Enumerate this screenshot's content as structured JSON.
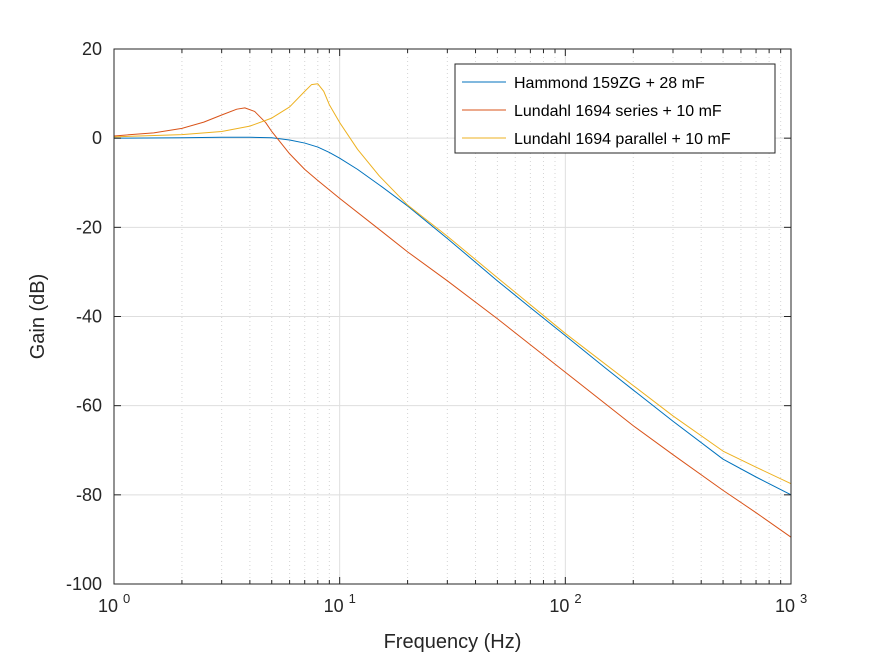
{
  "chart_data": {
    "type": "line",
    "title": "",
    "xlabel": "Frequency (Hz)",
    "ylabel": "Gain (dB)",
    "xscale": "log",
    "xlim": [
      1,
      1000
    ],
    "ylim": [
      -100,
      20
    ],
    "xticks": [
      {
        "base": "10",
        "exp": "0"
      },
      {
        "base": "10",
        "exp": "1"
      },
      {
        "base": "10",
        "exp": "2"
      },
      {
        "base": "10",
        "exp": "3"
      }
    ],
    "yticks": [
      "20",
      "0",
      "-20",
      "-40",
      "-60",
      "-80",
      "-100"
    ],
    "grid": true,
    "minor_grid": true,
    "legend_position": "top-right",
    "series": [
      {
        "name": "Hammond 159ZG + 28 mF",
        "color": "#0072BD",
        "x": [
          1,
          2,
          3,
          4,
          5,
          6,
          7,
          8,
          9,
          10,
          12,
          15,
          20,
          30,
          50,
          70,
          100,
          150,
          200,
          300,
          500,
          700,
          1000
        ],
        "y": [
          0,
          0.1,
          0.2,
          0.2,
          0.1,
          -0.4,
          -1.1,
          -2.0,
          -3.2,
          -4.5,
          -7.0,
          -10.5,
          -15.2,
          -22.5,
          -32.0,
          -38.0,
          -44.3,
          -51.5,
          -56.5,
          -63.5,
          -72.0,
          -76.0,
          -80.0
        ]
      },
      {
        "name": "Lundahl 1694 series + 10 mF",
        "color": "#D95319",
        "x": [
          1,
          1.5,
          2,
          2.5,
          3,
          3.5,
          3.8,
          4.2,
          4.7,
          5,
          6,
          7,
          8,
          10,
          15,
          20,
          30,
          50,
          100,
          200,
          300,
          500,
          700,
          1000
        ],
        "y": [
          0.5,
          1.2,
          2.2,
          3.6,
          5.2,
          6.5,
          6.8,
          6.0,
          3.5,
          1.5,
          -3.5,
          -7.0,
          -9.5,
          -13.5,
          -20.5,
          -25.5,
          -32.0,
          -40.5,
          -52.5,
          -64.5,
          -71.0,
          -79.0,
          -84.0,
          -89.5
        ]
      },
      {
        "name": "Lundahl 1694 parallel + 10 mF",
        "color": "#EDB120",
        "x": [
          1,
          2,
          3,
          4,
          5,
          6,
          7,
          7.5,
          8,
          8.5,
          9,
          10,
          12,
          15,
          20,
          30,
          50,
          100,
          200,
          300,
          500,
          700,
          1000
        ],
        "y": [
          0.3,
          0.8,
          1.5,
          2.7,
          4.5,
          7.0,
          10.5,
          12.0,
          12.2,
          10.5,
          7.5,
          3.5,
          -2.5,
          -8.5,
          -15.0,
          -22.0,
          -31.3,
          -43.8,
          -55.5,
          -62.3,
          -70.2,
          -73.8,
          -77.5
        ]
      }
    ]
  }
}
